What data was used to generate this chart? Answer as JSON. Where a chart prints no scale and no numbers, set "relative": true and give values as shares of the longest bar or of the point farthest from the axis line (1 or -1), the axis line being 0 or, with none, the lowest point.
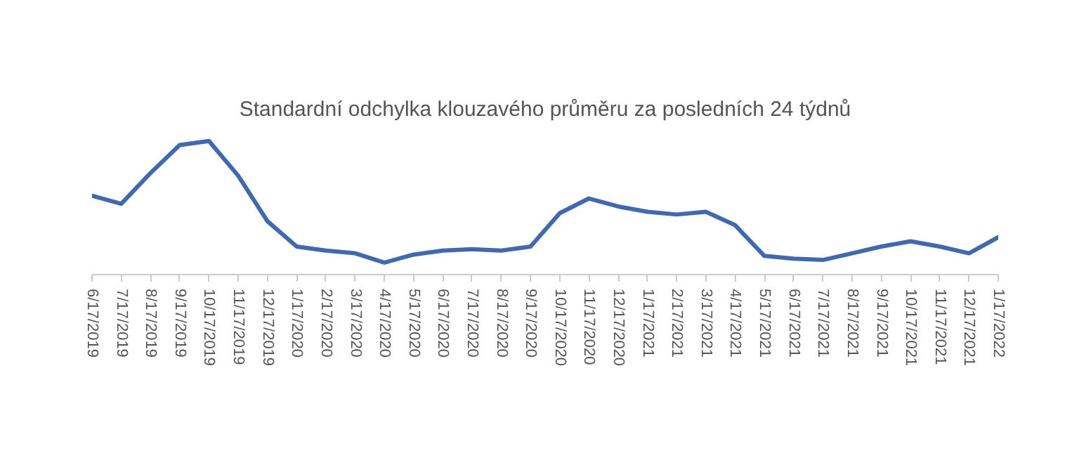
{
  "chart_data": {
    "type": "line",
    "title": "Standardní odchylka klouzavého průměru za posledních 24 týdnů",
    "relative": true,
    "categories": [
      "6/17/2019",
      "7/17/2019",
      "8/17/2019",
      "9/17/2019",
      "10/17/2019",
      "11/17/2019",
      "12/17/2019",
      "1/17/2020",
      "2/17/2020",
      "3/17/2020",
      "4/17/2020",
      "5/17/2020",
      "6/17/2020",
      "7/17/2020",
      "8/17/2020",
      "9/17/2020",
      "10/17/2020",
      "11/17/2020",
      "12/17/2020",
      "1/17/2021",
      "2/17/2021",
      "3/17/2021",
      "4/17/2021",
      "5/17/2021",
      "6/17/2021",
      "7/17/2021",
      "8/17/2021",
      "9/17/2021",
      "10/17/2021",
      "11/17/2021",
      "12/17/2021",
      "1/17/2022"
    ],
    "series": [
      {
        "color": "#4169b0",
        "values": [
          0.59,
          0.53,
          0.76,
          0.97,
          1,
          0.74,
          0.4,
          0.21,
          0.18,
          0.16,
          0.09,
          0.15,
          0.18,
          0.19,
          0.18,
          0.21,
          0.46,
          0.57,
          0.51,
          0.47,
          0.45,
          0.47,
          0.37,
          0.14,
          0.12,
          0.11,
          0.16,
          0.21,
          0.25,
          0.21,
          0.16,
          0.28
        ]
      }
    ],
    "grid": false
  }
}
